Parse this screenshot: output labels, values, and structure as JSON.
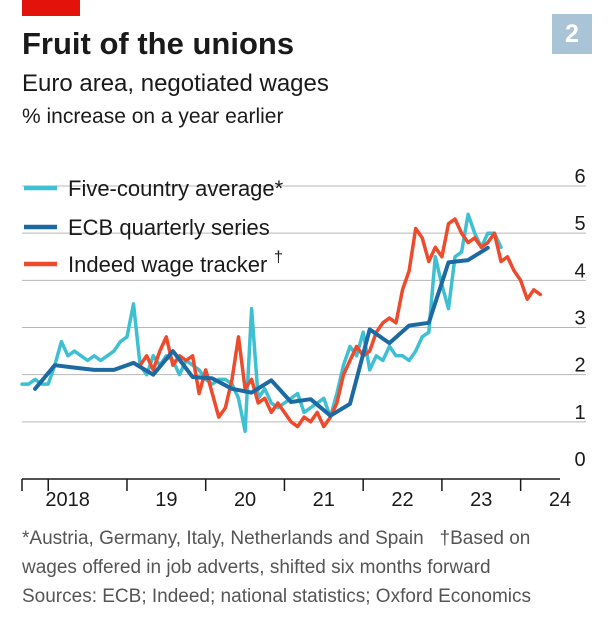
{
  "header": {
    "chart_number": "2",
    "title": "Fruit of the unions",
    "subtitle": "Euro area, negotiated wages",
    "units": "% increase on a year earlier"
  },
  "footnotes": {
    "line1_left": "*Austria, Germany, Italy, Netherlands and Spain",
    "line1_right": "†Based on",
    "line2": "wages offered in job adverts, shifted six months forward",
    "sources": "Sources: ECB; Indeed; national statistics; Oxford Economics"
  },
  "colors": {
    "five_country": "#3ebfd2",
    "ecb": "#1d6aa2",
    "indeed": "#ee4a2c",
    "gridline": "#b7b7b7",
    "red_tag": "#e3120b",
    "number_box": "#a9c4d6"
  },
  "chart_data": {
    "type": "line",
    "x_tick_labels": [
      "2018",
      "19",
      "20",
      "21",
      "22",
      "23",
      "24"
    ],
    "x_range": [
      "2017-09",
      "2024-07"
    ],
    "y_tick_labels": [
      "0",
      "1",
      "2",
      "3",
      "4",
      "5",
      "6"
    ],
    "ylim": [
      0,
      6
    ],
    "grid": "horizontal",
    "legend_position": "top-left",
    "series": [
      {
        "name": "Five-country average*",
        "key": "five_country",
        "points": [
          [
            "2017-09",
            1.8
          ],
          [
            "2017-10",
            1.8
          ],
          [
            "2017-11",
            1.9
          ],
          [
            "2017-12",
            1.8
          ],
          [
            "2018-01",
            1.8
          ],
          [
            "2018-02",
            2.2
          ],
          [
            "2018-03",
            2.7
          ],
          [
            "2018-04",
            2.4
          ],
          [
            "2018-05",
            2.5
          ],
          [
            "2018-06",
            2.4
          ],
          [
            "2018-07",
            2.3
          ],
          [
            "2018-08",
            2.4
          ],
          [
            "2018-09",
            2.3
          ],
          [
            "2018-10",
            2.4
          ],
          [
            "2018-11",
            2.5
          ],
          [
            "2018-12",
            2.7
          ],
          [
            "2019-01",
            2.8
          ],
          [
            "2019-02",
            3.5
          ],
          [
            "2019-03",
            2.2
          ],
          [
            "2019-04",
            2.0
          ],
          [
            "2019-05",
            2.4
          ],
          [
            "2019-06",
            2.2
          ],
          [
            "2019-07",
            2.4
          ],
          [
            "2019-08",
            2.3
          ],
          [
            "2019-09",
            2.0
          ],
          [
            "2019-10",
            2.3
          ],
          [
            "2019-11",
            2.2
          ],
          [
            "2019-12",
            2.1
          ],
          [
            "2020-01",
            1.9
          ],
          [
            "2020-02",
            1.8
          ],
          [
            "2020-03",
            1.9
          ],
          [
            "2020-04",
            1.9
          ],
          [
            "2020-05",
            1.8
          ],
          [
            "2020-06",
            1.5
          ],
          [
            "2020-07",
            0.8
          ],
          [
            "2020-08",
            3.4
          ],
          [
            "2020-09",
            1.5
          ],
          [
            "2020-10",
            1.7
          ],
          [
            "2020-11",
            1.4
          ],
          [
            "2020-12",
            1.3
          ],
          [
            "2021-01",
            1.4
          ],
          [
            "2021-02",
            1.5
          ],
          [
            "2021-03",
            1.6
          ],
          [
            "2021-04",
            1.2
          ],
          [
            "2021-05",
            1.3
          ],
          [
            "2021-06",
            1.4
          ],
          [
            "2021-07",
            1.5
          ],
          [
            "2021-08",
            1.1
          ],
          [
            "2021-09",
            1.6
          ],
          [
            "2021-10",
            2.2
          ],
          [
            "2021-11",
            2.6
          ],
          [
            "2021-12",
            2.4
          ],
          [
            "2022-01",
            2.9
          ],
          [
            "2022-02",
            2.1
          ],
          [
            "2022-03",
            2.4
          ],
          [
            "2022-04",
            2.3
          ],
          [
            "2022-05",
            2.6
          ],
          [
            "2022-06",
            2.4
          ],
          [
            "2022-07",
            2.4
          ],
          [
            "2022-08",
            2.3
          ],
          [
            "2022-09",
            2.5
          ],
          [
            "2022-10",
            2.8
          ],
          [
            "2022-11",
            2.9
          ],
          [
            "2022-12",
            4.5
          ],
          [
            "2023-01",
            3.9
          ],
          [
            "2023-02",
            3.4
          ],
          [
            "2023-03",
            4.5
          ],
          [
            "2023-04",
            4.6
          ],
          [
            "2023-05",
            5.4
          ],
          [
            "2023-06",
            5.0
          ],
          [
            "2023-07",
            4.7
          ],
          [
            "2023-08",
            5.0
          ],
          [
            "2023-09",
            5.0
          ],
          [
            "2023-10",
            4.7
          ]
        ]
      },
      {
        "name": "ECB quarterly series",
        "key": "ecb",
        "points": [
          [
            "2017-11",
            1.7
          ],
          [
            "2018-02",
            2.2
          ],
          [
            "2018-05",
            2.15
          ],
          [
            "2018-08",
            2.1
          ],
          [
            "2018-11",
            2.1
          ],
          [
            "2019-02",
            2.25
          ],
          [
            "2019-05",
            2.0
          ],
          [
            "2019-08",
            2.5
          ],
          [
            "2019-11",
            1.95
          ],
          [
            "2020-02",
            1.92
          ],
          [
            "2020-05",
            1.7
          ],
          [
            "2020-08",
            1.62
          ],
          [
            "2020-11",
            1.88
          ],
          [
            "2021-02",
            1.42
          ],
          [
            "2021-05",
            1.48
          ],
          [
            "2021-08",
            1.13
          ],
          [
            "2021-11",
            1.38
          ],
          [
            "2022-02",
            2.96
          ],
          [
            "2022-05",
            2.67
          ],
          [
            "2022-08",
            3.04
          ],
          [
            "2022-11",
            3.1
          ],
          [
            "2023-02",
            4.38
          ],
          [
            "2023-05",
            4.43
          ],
          [
            "2023-08",
            4.69
          ]
        ]
      },
      {
        "name": "Indeed wage tracker",
        "key": "indeed",
        "points": [
          [
            "2019-03",
            2.2
          ],
          [
            "2019-04",
            2.4
          ],
          [
            "2019-05",
            2.1
          ],
          [
            "2019-06",
            2.5
          ],
          [
            "2019-07",
            2.8
          ],
          [
            "2019-08",
            2.2
          ],
          [
            "2019-09",
            2.4
          ],
          [
            "2019-10",
            2.3
          ],
          [
            "2019-11",
            2.4
          ],
          [
            "2019-12",
            1.6
          ],
          [
            "2020-01",
            2.1
          ],
          [
            "2020-02",
            1.6
          ],
          [
            "2020-03",
            1.1
          ],
          [
            "2020-04",
            1.3
          ],
          [
            "2020-05",
            1.9
          ],
          [
            "2020-06",
            2.8
          ],
          [
            "2020-07",
            1.7
          ],
          [
            "2020-08",
            1.9
          ],
          [
            "2020-09",
            1.4
          ],
          [
            "2020-10",
            1.5
          ],
          [
            "2020-11",
            1.2
          ],
          [
            "2020-12",
            1.4
          ],
          [
            "2021-01",
            1.2
          ],
          [
            "2021-02",
            1.0
          ],
          [
            "2021-03",
            0.9
          ],
          [
            "2021-04",
            1.1
          ],
          [
            "2021-05",
            1.0
          ],
          [
            "2021-06",
            1.2
          ],
          [
            "2021-07",
            0.9
          ],
          [
            "2021-08",
            1.1
          ],
          [
            "2021-09",
            1.4
          ],
          [
            "2021-10",
            2.0
          ],
          [
            "2021-11",
            2.3
          ],
          [
            "2021-12",
            2.6
          ],
          [
            "2022-01",
            2.4
          ],
          [
            "2022-02",
            2.5
          ],
          [
            "2022-03",
            2.9
          ],
          [
            "2022-04",
            3.1
          ],
          [
            "2022-05",
            3.2
          ],
          [
            "2022-06",
            3.1
          ],
          [
            "2022-07",
            3.8
          ],
          [
            "2022-08",
            4.2
          ],
          [
            "2022-09",
            5.1
          ],
          [
            "2022-10",
            4.9
          ],
          [
            "2022-11",
            4.4
          ],
          [
            "2022-12",
            4.7
          ],
          [
            "2023-01",
            4.5
          ],
          [
            "2023-02",
            5.2
          ],
          [
            "2023-03",
            5.3
          ],
          [
            "2023-04",
            5.0
          ],
          [
            "2023-05",
            4.8
          ],
          [
            "2023-06",
            4.9
          ],
          [
            "2023-07",
            4.7
          ],
          [
            "2023-08",
            4.8
          ],
          [
            "2023-09",
            5.0
          ],
          [
            "2023-10",
            4.4
          ],
          [
            "2023-11",
            4.5
          ],
          [
            "2023-12",
            4.2
          ],
          [
            "2024-01",
            4.0
          ],
          [
            "2024-02",
            3.6
          ],
          [
            "2024-03",
            3.8
          ],
          [
            "2024-04",
            3.7
          ]
        ]
      }
    ]
  }
}
